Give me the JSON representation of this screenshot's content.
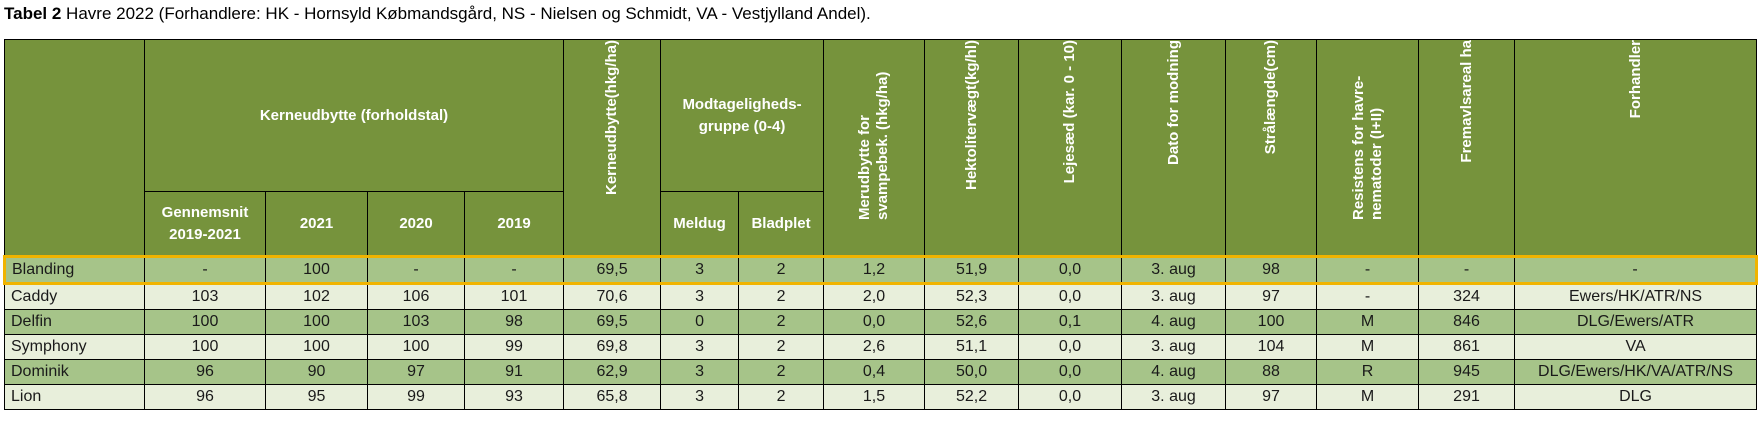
{
  "title": {
    "bold": "Tabel 2",
    "rest": " Havre 2022 (Forhandlere: HK - Hornsyld Købmandsgård, NS - Nielsen og Schmidt, VA - Vestjylland Andel)."
  },
  "headers": {
    "kerneudbytte_group": "Kerneudbytte (forholdstal)",
    "gennemsnit": "Gennemsnit 2019-2021",
    "y2021": "2021",
    "y2020": "2020",
    "y2019": "2019",
    "kerneudbytte_hkg": "Kerneudbytte(hkg/ha)",
    "modtagelighed_group": "Modtageligheds-gruppe (0-4)",
    "meldug": "Meldug",
    "bladplet": "Bladplet",
    "merudbytte": "Merudbytte for svampebek. (hkg/ha)",
    "hektolitervaegt": "Hektolitervægt(kg/hl)",
    "lejesaed": "Lejesæd (kar. 0 - 10)",
    "dato": "Dato for modning",
    "straalaengde": "Strålængde(cm)",
    "resistens": "Resistens for havre-nematoder (I+II)",
    "fremavlsareal": "Fremavlsareal ha",
    "forhandler": "Forhandler"
  },
  "colors": {
    "header": "#76933c",
    "row_dark": "#a6c489",
    "row_light": "#e8efdb",
    "highlight": "#f0b400"
  },
  "rows": [
    [
      "Blanding",
      "-",
      "100",
      "-",
      "-",
      "69,5",
      "3",
      "2",
      "1,2",
      "51,9",
      "0,0",
      "3. aug",
      "98",
      "-",
      "-",
      "-"
    ],
    [
      "Caddy",
      "103",
      "102",
      "106",
      "101",
      "70,6",
      "3",
      "2",
      "2,0",
      "52,3",
      "0,0",
      "3. aug",
      "97",
      "-",
      "324",
      "Ewers/HK/ATR/NS"
    ],
    [
      "Delfin",
      "100",
      "100",
      "103",
      "98",
      "69,5",
      "0",
      "2",
      "0,0",
      "52,6",
      "0,1",
      "4. aug",
      "100",
      "M",
      "846",
      "DLG/Ewers/ATR"
    ],
    [
      "Symphony",
      "100",
      "100",
      "100",
      "99",
      "69,8",
      "3",
      "2",
      "2,6",
      "51,1",
      "0,0",
      "3. aug",
      "104",
      "M",
      "861",
      "VA"
    ],
    [
      "Dominik",
      "96",
      "90",
      "97",
      "91",
      "62,9",
      "3",
      "2",
      "0,4",
      "50,0",
      "0,0",
      "4. aug",
      "88",
      "R",
      "945",
      "DLG/Ewers/HK/VA/ATR/NS"
    ],
    [
      "Lion",
      "96",
      "95",
      "99",
      "93",
      "65,8",
      "3",
      "2",
      "1,5",
      "52,2",
      "0,0",
      "3. aug",
      "97",
      "M",
      "291",
      "DLG"
    ]
  ]
}
